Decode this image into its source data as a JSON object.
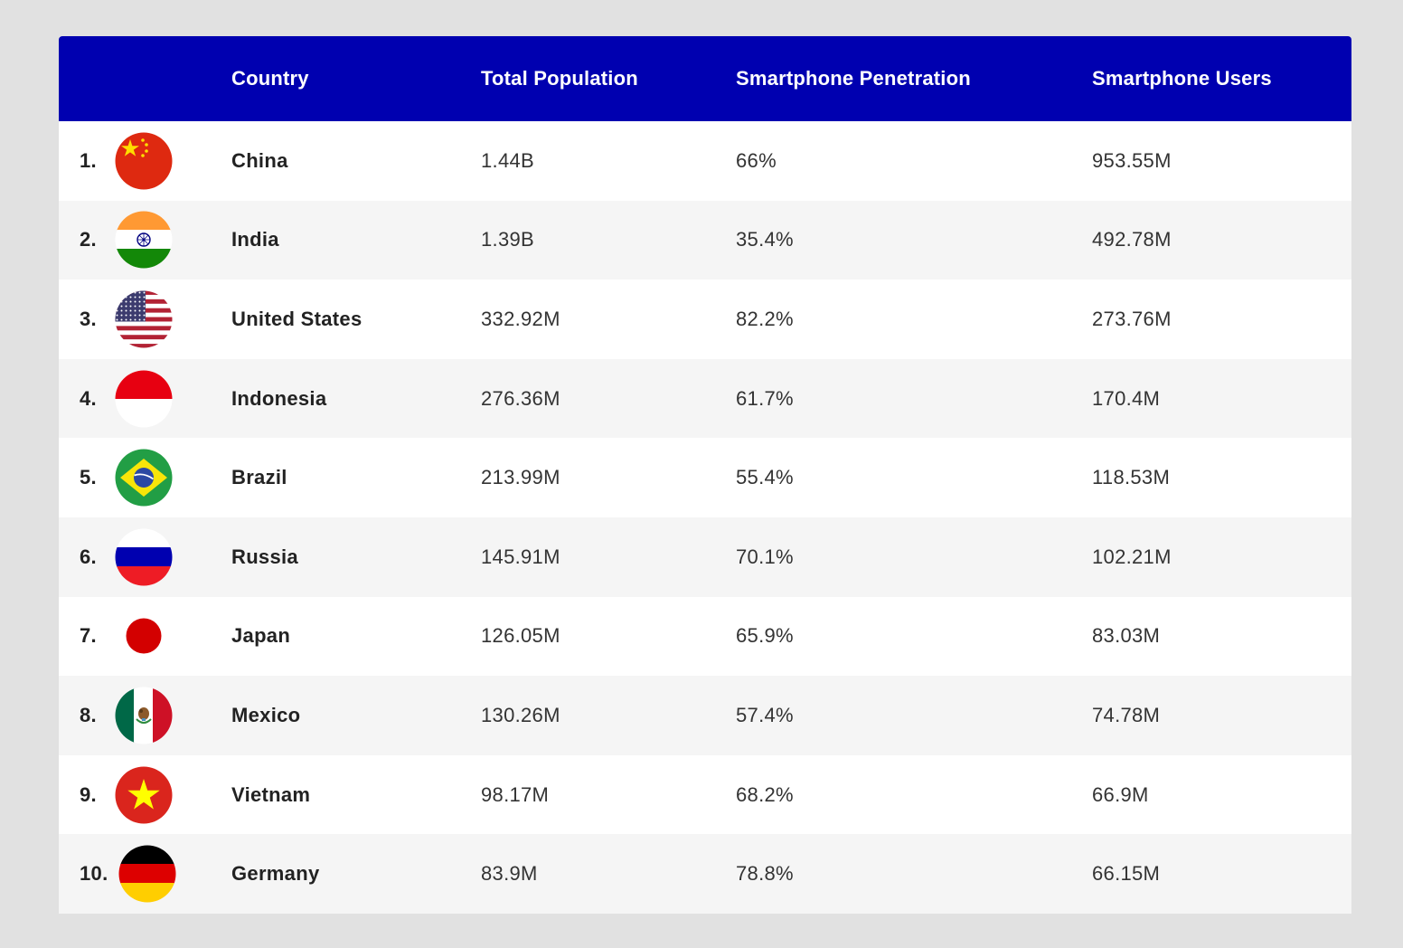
{
  "table": {
    "headers": {
      "country": "Country",
      "population": "Total Population",
      "penetration": "Smartphone Penetration",
      "users": "Smartphone Users"
    },
    "rows": [
      {
        "rank": "1.",
        "flag": "china-flag-icon",
        "country": "China",
        "population": "1.44B",
        "penetration": "66%",
        "users": "953.55M"
      },
      {
        "rank": "2.",
        "flag": "india-flag-icon",
        "country": "India",
        "population": "1.39B",
        "penetration": "35.4%",
        "users": "492.78M"
      },
      {
        "rank": "3.",
        "flag": "united-states-flag-icon",
        "country": "United States",
        "population": "332.92M",
        "penetration": "82.2%",
        "users": "273.76M"
      },
      {
        "rank": "4.",
        "flag": "indonesia-flag-icon",
        "country": "Indonesia",
        "population": "276.36M",
        "penetration": "61.7%",
        "users": "170.4M"
      },
      {
        "rank": "5.",
        "flag": "brazil-flag-icon",
        "country": "Brazil",
        "population": "213.99M",
        "penetration": "55.4%",
        "users": "118.53M"
      },
      {
        "rank": "6.",
        "flag": "russia-flag-icon",
        "country": "Russia",
        "population": "145.91M",
        "penetration": "70.1%",
        "users": "102.21M"
      },
      {
        "rank": "7.",
        "flag": "japan-flag-icon",
        "country": "Japan",
        "population": "126.05M",
        "penetration": "65.9%",
        "users": "83.03M"
      },
      {
        "rank": "8.",
        "flag": "mexico-flag-icon",
        "country": "Mexico",
        "population": "130.26M",
        "penetration": "57.4%",
        "users": "74.78M"
      },
      {
        "rank": "9.",
        "flag": "vietnam-flag-icon",
        "country": "Vietnam",
        "population": "98.17M",
        "penetration": "68.2%",
        "users": "66.9M"
      },
      {
        "rank": "10.",
        "flag": "germany-flag-icon",
        "country": "Germany",
        "population": "83.9M",
        "penetration": "78.8%",
        "users": "66.15M"
      }
    ]
  },
  "colors": {
    "header_bg": "#0000b0",
    "row_alt": "#f5f5f5",
    "page_bg": "#e1e1e1"
  }
}
